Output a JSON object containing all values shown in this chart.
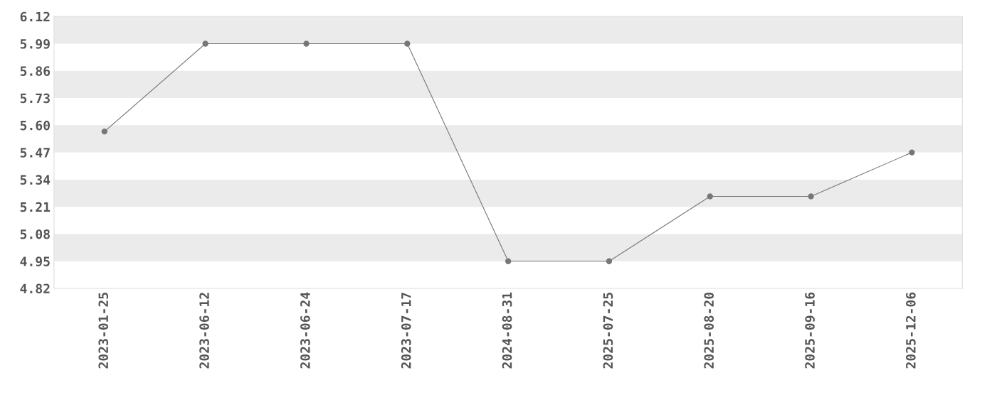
{
  "chart_data": {
    "type": "line",
    "categories": [
      "2023-01-25",
      "2023-06-12",
      "2023-06-24",
      "2023-07-17",
      "2024-08-31",
      "2025-07-25",
      "2025-08-20",
      "2025-09-16",
      "2025-12-06"
    ],
    "series": [
      {
        "color": "#777777",
        "values": [
          5.57,
          5.99,
          5.99,
          5.99,
          4.95,
          4.95,
          5.26,
          5.26,
          5.47
        ]
      }
    ],
    "ylim": [
      4.82,
      6.12
    ],
    "yticks": [
      4.82,
      4.95,
      5.08,
      5.21,
      5.34,
      5.47,
      {
        "value": 5.6,
        "label": "5.60"
      },
      5.73,
      5.86,
      5.99,
      6.12
    ],
    "bands": [
      {
        "axis": "y",
        "from": 5.99,
        "to": 6.12,
        "color": "#ebebeb"
      },
      {
        "axis": "y",
        "from": 5.73,
        "to": 5.86,
        "color": "#ebebeb"
      },
      {
        "axis": "y",
        "from": 5.47,
        "to": 5.6,
        "color": "#ebebeb"
      },
      {
        "axis": "y",
        "from": 5.21,
        "to": 5.34,
        "color": "#ebebeb"
      },
      {
        "axis": "y",
        "from": 4.95,
        "to": 5.08,
        "color": "#ebebeb"
      }
    ],
    "grid": false,
    "legend": false,
    "marker": "circle",
    "line_style": "solid"
  }
}
